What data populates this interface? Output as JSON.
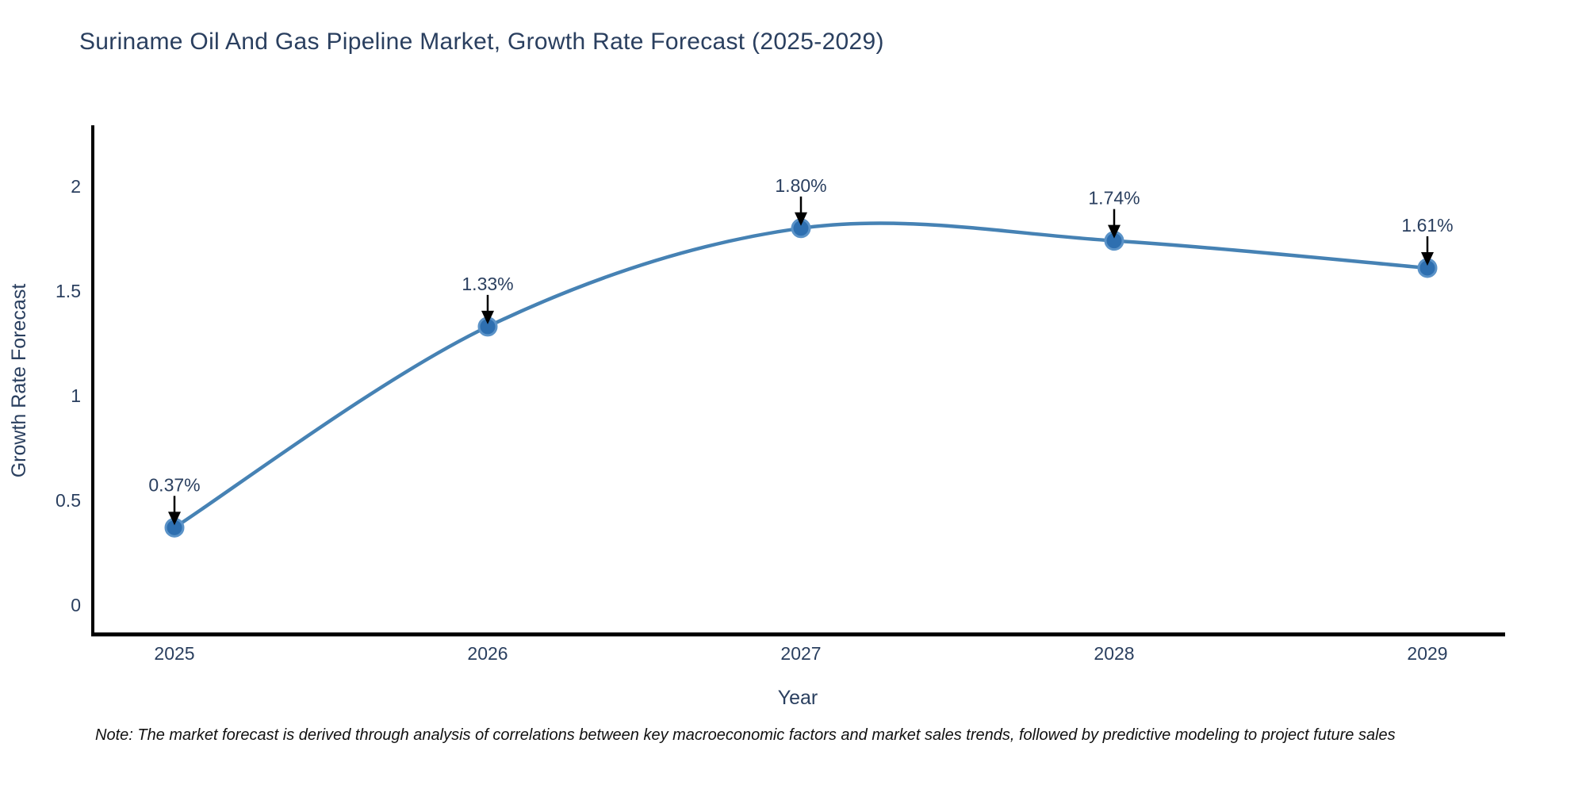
{
  "page": {
    "background": "#ffffff"
  },
  "chart_data": {
    "type": "line",
    "title": "Suriname Oil And Gas Pipeline Market, Growth Rate Forecast (2025-2029)",
    "xlabel": "Year",
    "ylabel": "Growth Rate Forecast",
    "x": [
      2025,
      2026,
      2027,
      2028,
      2029
    ],
    "x_tick_labels": [
      "2025",
      "2026",
      "2027",
      "2028",
      "2029"
    ],
    "values": [
      0.37,
      1.33,
      1.8,
      1.74,
      1.61
    ],
    "data_labels": [
      "0.37%",
      "1.33%",
      "1.80%",
      "1.74%",
      "1.61%"
    ],
    "y_ticks": [
      0,
      0.5,
      1,
      1.5,
      2
    ],
    "y_tick_labels": [
      "0",
      "0.5",
      "1",
      "1.5",
      "2"
    ],
    "ylim": [
      0,
      2.42
    ],
    "xlim": [
      2025,
      2029
    ],
    "line_shape": "spline",
    "grid": false,
    "legend": false,
    "annotation_arrows": "down",
    "colors": {
      "line": "#4682b4",
      "marker_fill": "#2e6fb0",
      "marker_edge": "#5b93c8",
      "axis": "#000000",
      "tick_text": "#2a3f5f",
      "annotation_text": "#2a3f5f",
      "arrow": "#000000",
      "title_text": "#2a3f5f",
      "note_text": "#111111"
    },
    "note": "Note: The market forecast is derived through analysis of correlations between key macroeconomic factors and market sales trends, followed by predictive modeling to project future sales"
  }
}
